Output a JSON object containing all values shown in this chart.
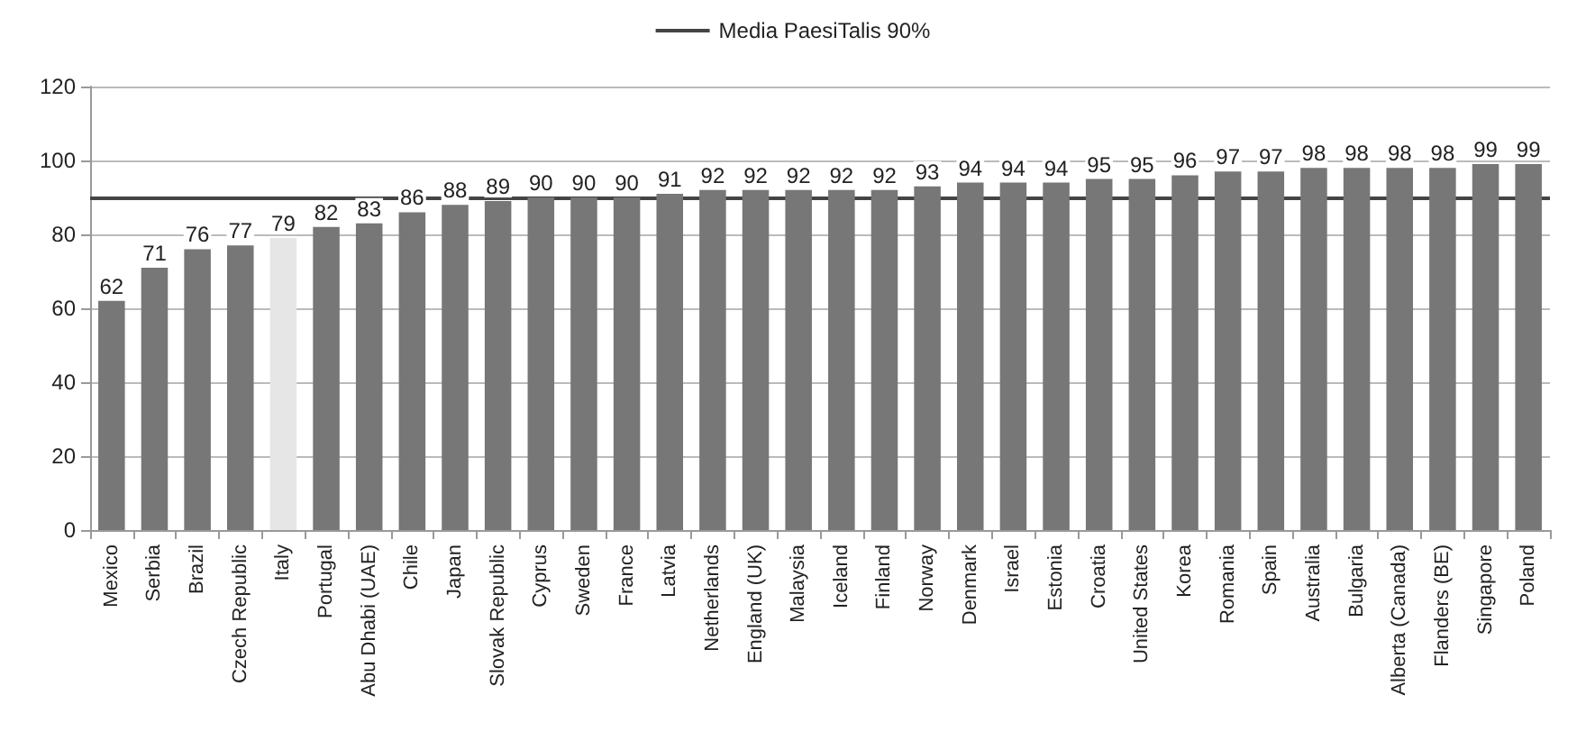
{
  "chart_data": {
    "type": "bar",
    "categories": [
      "Mexico",
      "Serbia",
      "Brazil",
      "Czech Republic",
      "Italy",
      "Portugal",
      "Abu Dhabi (UAE)",
      "Chile",
      "Japan",
      "Slovak Republic",
      "Cyprus",
      "Sweden",
      "France",
      "Latvia",
      "Netherlands",
      "England (UK)",
      "Malaysia",
      "Iceland",
      "Finland",
      "Norway",
      "Denmark",
      "Israel",
      "Estonia",
      "Croatia",
      "United States",
      "Korea",
      "Romania",
      "Spain",
      "Australia",
      "Bulgaria",
      "Alberta (Canada)",
      "Flanders (BE)",
      "Singapore",
      "Poland"
    ],
    "values": [
      62,
      71,
      76,
      77,
      79,
      82,
      83,
      86,
      88,
      89,
      90,
      90,
      90,
      91,
      92,
      92,
      92,
      92,
      92,
      93,
      94,
      94,
      94,
      95,
      95,
      96,
      97,
      97,
      98,
      98,
      98,
      98,
      99,
      99
    ],
    "colors": [
      "#777777",
      "#777777",
      "#777777",
      "#777777",
      "#e6e6e6",
      "#777777",
      "#777777",
      "#777777",
      "#777777",
      "#777777",
      "#777777",
      "#777777",
      "#777777",
      "#777777",
      "#777777",
      "#777777",
      "#777777",
      "#777777",
      "#777777",
      "#777777",
      "#777777",
      "#777777",
      "#777777",
      "#777777",
      "#777777",
      "#777777",
      "#777777",
      "#777777",
      "#777777",
      "#777777",
      "#777777",
      "#777777",
      "#777777",
      "#777777"
    ],
    "ylim": [
      0,
      120
    ],
    "yticks": [
      0,
      20,
      40,
      60,
      80,
      100,
      120
    ],
    "grid": "y",
    "data_labels": true,
    "legend": "top",
    "ref_lines": [
      {
        "axis": "y",
        "value": 90,
        "label": "Media PaesiTalis 90%",
        "color": "#444444"
      }
    ]
  }
}
